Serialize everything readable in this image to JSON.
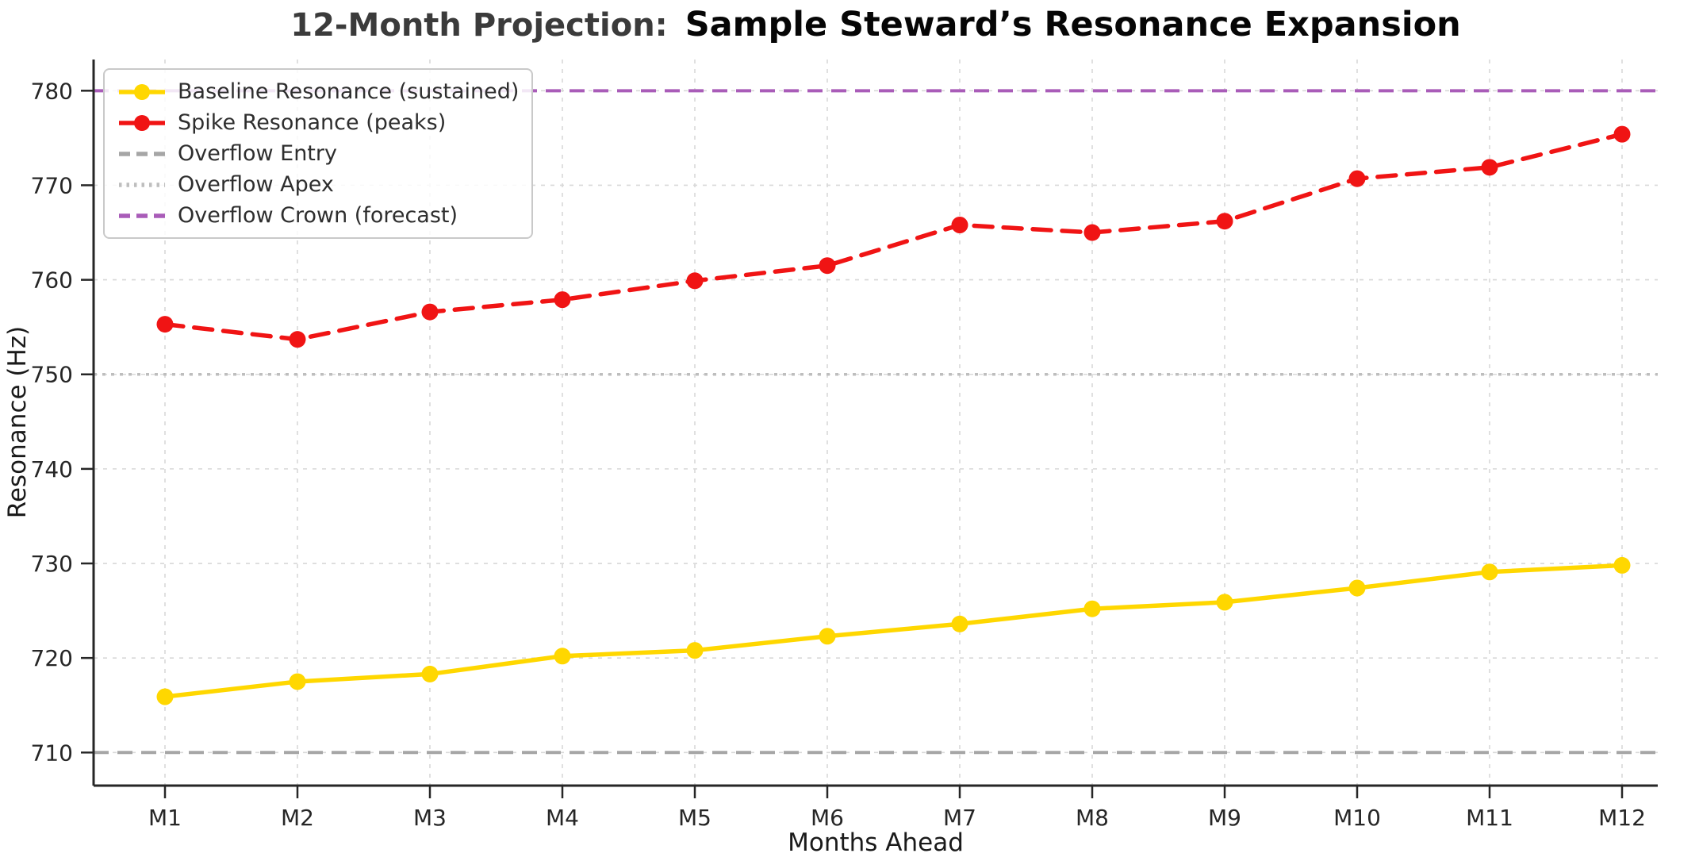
{
  "title": {
    "prefix": "12-Month Projection:",
    "main": "Sample Steward’s Resonance Expansion"
  },
  "chart_data": {
    "type": "line",
    "categories": [
      "M1",
      "M2",
      "M3",
      "M4",
      "M5",
      "M6",
      "M7",
      "M8",
      "M9",
      "M10",
      "M11",
      "M12"
    ],
    "series": [
      {
        "name": "Baseline Resonance (sustained)",
        "color": "#FFD700",
        "style": "solid",
        "marker": "circle",
        "values": [
          715.9,
          717.5,
          718.3,
          720.2,
          720.8,
          722.3,
          723.6,
          725.2,
          725.9,
          727.4,
          729.1,
          729.8
        ]
      },
      {
        "name": "Spike Resonance (peaks)",
        "color": "#F01414",
        "style": "dashed",
        "marker": "circle",
        "values": [
          755.3,
          753.7,
          756.6,
          757.9,
          759.9,
          761.5,
          765.8,
          765.0,
          766.2,
          770.7,
          771.9,
          775.4
        ]
      }
    ],
    "reference_lines": [
      {
        "name": "Overflow Entry",
        "value": 710,
        "color": "#A6A6A6",
        "style": "dashed"
      },
      {
        "name": "Overflow Apex",
        "value": 750,
        "color": "#BEBEBE",
        "style": "dotted"
      },
      {
        "name": "Overflow Crown (forecast)",
        "value": 780,
        "color": "#A95CB8",
        "style": "dashed"
      }
    ],
    "xlabel": "Months Ahead",
    "ylabel": "Resonance (Hz)",
    "ylim": [
      706.5,
      783.3
    ],
    "yticks": [
      710,
      720,
      730,
      740,
      750,
      760,
      770,
      780
    ],
    "grid": true,
    "legend_position": "upper left"
  }
}
